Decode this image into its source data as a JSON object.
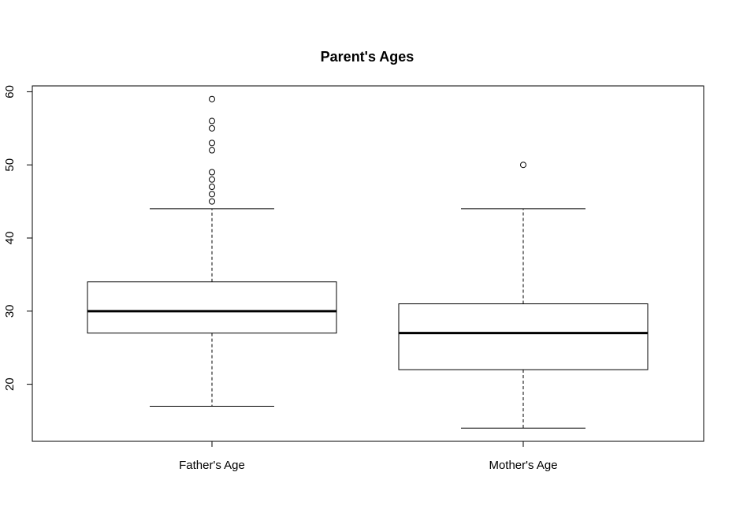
{
  "chart_data": {
    "type": "box",
    "title": "Parent's Ages",
    "xlabel": "",
    "ylabel": "",
    "ylim": [
      12.2,
      60.8
    ],
    "yticks": [
      20,
      30,
      40,
      50,
      60
    ],
    "ytick_labels": [
      "20",
      "30",
      "40",
      "50",
      "60"
    ],
    "categories": [
      "Father's Age",
      "Mother's Age"
    ],
    "series": [
      {
        "category": "Father's Age",
        "whisker_low": 17,
        "q1": 27,
        "median": 30,
        "q3": 34,
        "whisker_high": 44,
        "outliers": [
          45,
          46,
          47,
          48,
          49,
          52,
          53,
          55,
          56,
          59
        ]
      },
      {
        "category": "Mother's Age",
        "whisker_low": 14,
        "q1": 22,
        "median": 27,
        "q3": 31,
        "whisker_high": 44,
        "outliers": [
          50
        ]
      }
    ],
    "grid": false,
    "legend": "none"
  }
}
